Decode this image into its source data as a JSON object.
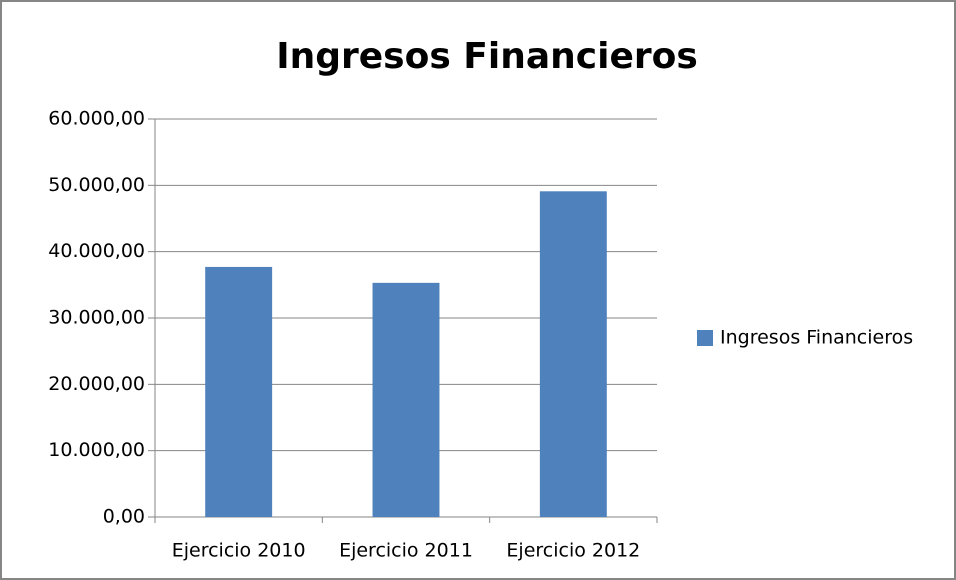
{
  "chart_data": {
    "type": "bar",
    "title": "Ingresos Financieros",
    "categories": [
      "Ejercicio 2010",
      "Ejercicio 2011",
      "Ejercicio 2012"
    ],
    "series": [
      {
        "name": "Ingresos Financieros",
        "color": "#4f81bd",
        "values": [
          37700,
          35300,
          49100
        ]
      }
    ],
    "ylim": [
      0,
      60000
    ],
    "yticks": [
      {
        "value": 0,
        "label": "0,00"
      },
      {
        "value": 10000,
        "label": "10.000,00"
      },
      {
        "value": 20000,
        "label": "20.000,00"
      },
      {
        "value": 30000,
        "label": "30.000,00"
      },
      {
        "value": 40000,
        "label": "40.000,00"
      },
      {
        "value": 50000,
        "label": "50.000,00"
      },
      {
        "value": 60000,
        "label": "60.000,00"
      }
    ],
    "grid": true,
    "legend": "right"
  }
}
